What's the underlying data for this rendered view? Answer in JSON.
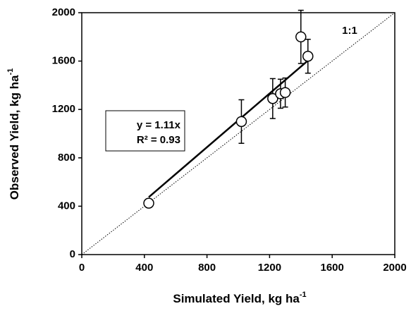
{
  "chart_data": {
    "type": "scatter",
    "x_label": "Simulated Yield, kg ha",
    "x_label_sup": "-1",
    "y_label": "Observed Yield, kg ha",
    "y_label_sup": "-1",
    "xlim": [
      0,
      2000
    ],
    "ylim": [
      0,
      2000
    ],
    "xticks": [
      0,
      400,
      800,
      1200,
      1600,
      2000
    ],
    "yticks": [
      0,
      400,
      800,
      1200,
      1600,
      2000
    ],
    "series": [
      {
        "x": [
          428,
          1020,
          1220,
          1270,
          1300,
          1400,
          1445
        ],
        "values": [
          425,
          1100,
          1290,
          1330,
          1340,
          1800,
          1640
        ],
        "errors": [
          35,
          180,
          165,
          120,
          120,
          220,
          140
        ],
        "color": "#000000"
      }
    ],
    "fit_line": {
      "x": [
        428,
        1445
      ],
      "y": [
        475,
        1604
      ]
    },
    "identity_line": {
      "x": [
        0,
        2000
      ],
      "y": [
        0,
        2000
      ],
      "label": "1:1"
    },
    "equation": "y = 1.11x",
    "r_squared": "R² = 0.93"
  }
}
